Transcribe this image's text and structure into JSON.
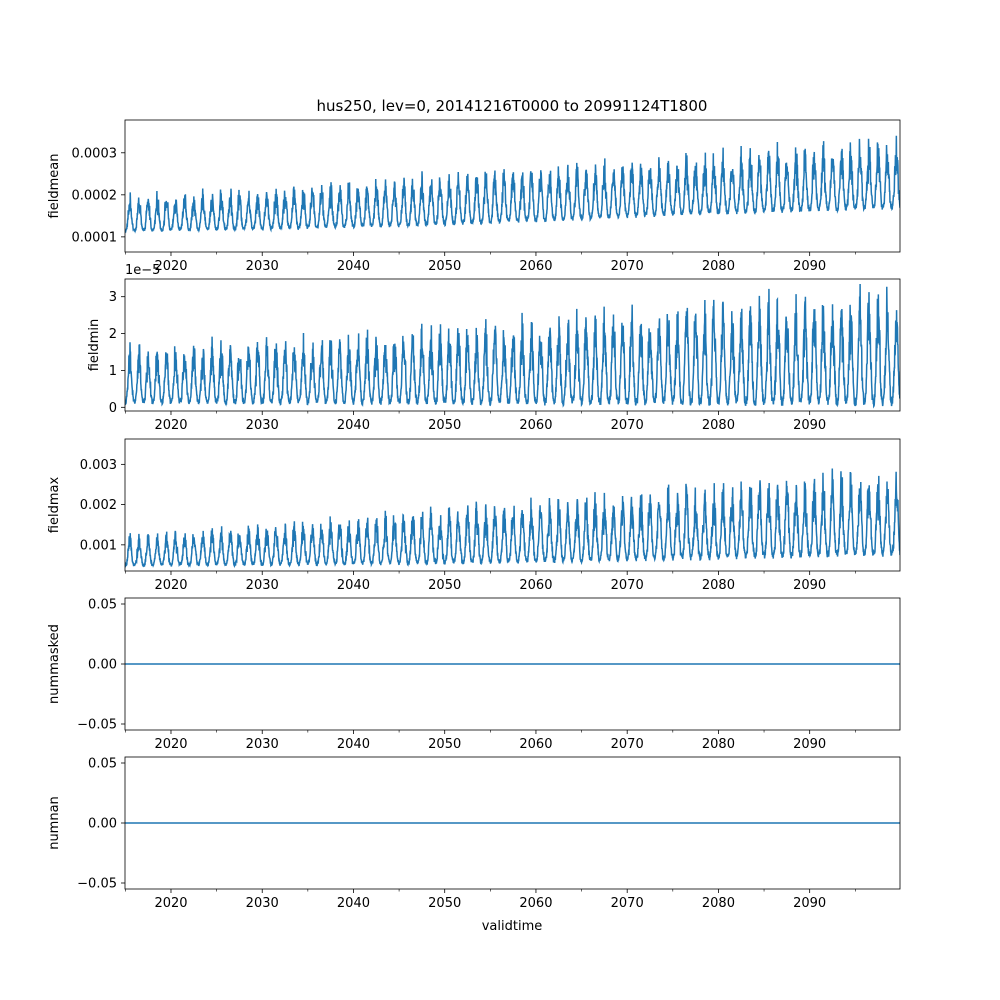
{
  "title": "hus250, lev=0, 20141216T0000 to 20991124T1800",
  "xlabel": "validtime",
  "colors": {
    "line": "#1f77b4",
    "axis": "#000000",
    "background": "#ffffff"
  },
  "chart_data": [
    {
      "type": "line",
      "ylabel": "fieldmean",
      "offset_label": "",
      "xlim": [
        2014.96,
        2099.9
      ],
      "ylim": [
        6.4e-05,
        0.000378
      ],
      "x_ticks": [
        2020,
        2030,
        2040,
        2050,
        2060,
        2070,
        2080,
        2090
      ],
      "x_tick_labels": [
        "2020",
        "2030",
        "2040",
        "2050",
        "2060",
        "2070",
        "2080",
        "2090"
      ],
      "y_ticks": [
        0.0001,
        0.0002,
        0.0003
      ],
      "y_tick_labels": [
        "0.0001",
        "0.0002",
        "0.0003"
      ],
      "trend": {
        "x": [
          2015,
          2030,
          2045,
          2060,
          2075,
          2099.9
        ],
        "base": [
          0.000115,
          0.00012,
          0.000128,
          0.00014,
          0.000155,
          0.000172
        ],
        "peak": [
          0.000195,
          0.000215,
          0.00024,
          0.000265,
          0.00029,
          0.00033
        ]
      },
      "grid": false,
      "legend": "none"
    },
    {
      "type": "line",
      "ylabel": "fieldmin",
      "offset_label": "1e−5",
      "xlim": [
        2014.96,
        2099.9
      ],
      "ylim": [
        -1e-06,
        3.48e-05
      ],
      "x_ticks": [
        2020,
        2030,
        2040,
        2050,
        2060,
        2070,
        2080,
        2090
      ],
      "x_tick_labels": [
        "2020",
        "2030",
        "2040",
        "2050",
        "2060",
        "2070",
        "2080",
        "2090"
      ],
      "y_ticks": [
        0,
        1e-05,
        2e-05,
        3e-05
      ],
      "y_tick_labels": [
        "0",
        "1",
        "2",
        "3"
      ],
      "trend": {
        "x": [
          2015,
          2030,
          2045,
          2060,
          2075,
          2099.9
        ],
        "base": [
          1.5e-06,
          1.5e-06,
          1.5e-06,
          1.5e-06,
          1.5e-06,
          1.5e-06
        ],
        "peak": [
          1.6e-05,
          1.8e-05,
          2.1e-05,
          2.4e-05,
          2.7e-05,
          3.1e-05
        ]
      },
      "grid": false,
      "legend": "none"
    },
    {
      "type": "line",
      "ylabel": "fieldmax",
      "offset_label": "",
      "xlim": [
        2014.96,
        2099.9
      ],
      "ylim": [
        0.00035,
        0.00363
      ],
      "x_ticks": [
        2020,
        2030,
        2040,
        2050,
        2060,
        2070,
        2080,
        2090
      ],
      "x_tick_labels": [
        "2020",
        "2030",
        "2040",
        "2050",
        "2060",
        "2070",
        "2080",
        "2090"
      ],
      "y_ticks": [
        0.001,
        0.002,
        0.003
      ],
      "y_tick_labels": [
        "0.001",
        "0.002",
        "0.003"
      ],
      "trend": {
        "x": [
          2015,
          2030,
          2045,
          2060,
          2075,
          2099.9
        ],
        "base": [
          0.0005,
          0.00052,
          0.00055,
          0.0006,
          0.00068,
          0.0008
        ],
        "peak": [
          0.0012,
          0.0015,
          0.0018,
          0.0021,
          0.0024,
          0.0028
        ]
      },
      "grid": false,
      "legend": "none"
    },
    {
      "type": "line",
      "ylabel": "nummasked",
      "offset_label": "",
      "xlim": [
        2014.96,
        2099.9
      ],
      "ylim": [
        -0.055,
        0.055
      ],
      "x_ticks": [
        2020,
        2030,
        2040,
        2050,
        2060,
        2070,
        2080,
        2090
      ],
      "x_tick_labels": [
        "2020",
        "2030",
        "2040",
        "2050",
        "2060",
        "2070",
        "2080",
        "2090"
      ],
      "y_ticks": [
        -0.05,
        0,
        0.05
      ],
      "y_tick_labels": [
        "−0.05",
        "0.00",
        "0.05"
      ],
      "constant": 0,
      "grid": false,
      "legend": "none"
    },
    {
      "type": "line",
      "ylabel": "numnan",
      "offset_label": "",
      "xlim": [
        2014.96,
        2099.9
      ],
      "ylim": [
        -0.055,
        0.055
      ],
      "x_ticks": [
        2020,
        2030,
        2040,
        2050,
        2060,
        2070,
        2080,
        2090
      ],
      "x_tick_labels": [
        "2020",
        "2030",
        "2040",
        "2050",
        "2060",
        "2070",
        "2080",
        "2090"
      ],
      "y_ticks": [
        -0.05,
        0,
        0.05
      ],
      "y_tick_labels": [
        "−0.05",
        "0.00",
        "0.05"
      ],
      "constant": 0,
      "grid": false,
      "legend": "none"
    }
  ]
}
